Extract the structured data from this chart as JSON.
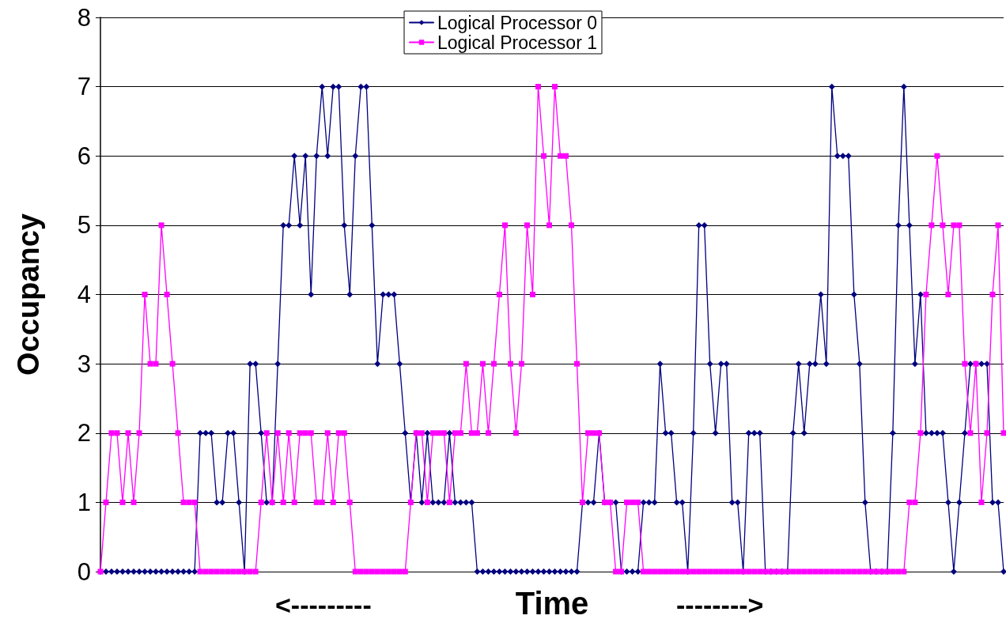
{
  "chart_data": {
    "type": "line",
    "xlabel": "Time",
    "ylabel": "Occupancy",
    "annotations": [
      "<---------",
      "-------->"
    ],
    "categories": [
      null,
      null,
      null,
      null,
      null,
      null,
      null,
      null,
      null,
      null,
      null,
      null,
      null,
      null,
      null,
      null,
      null,
      null,
      null,
      null,
      null,
      null,
      null,
      null,
      null,
      null,
      null,
      null,
      null,
      null,
      null,
      null,
      null,
      null,
      null,
      null,
      null,
      null,
      null,
      null,
      null,
      null,
      null,
      null,
      null,
      null,
      null,
      null,
      null,
      null,
      null,
      null,
      null,
      null,
      null,
      null,
      null,
      null,
      null,
      null,
      null,
      null,
      null,
      null,
      null,
      null,
      null,
      null,
      null,
      null,
      null,
      null,
      null,
      null,
      null,
      null,
      null,
      null,
      null,
      null,
      null,
      null,
      null,
      null,
      null,
      null,
      null,
      null,
      null,
      null,
      null,
      null,
      null,
      null,
      null,
      null,
      null,
      null,
      null,
      null,
      null,
      null,
      null,
      null,
      null,
      null,
      null,
      null,
      null,
      null,
      null,
      null,
      null,
      null,
      null,
      null,
      null,
      null,
      null,
      null,
      null,
      null,
      null,
      null,
      null,
      null,
      null,
      null,
      null,
      null,
      null,
      null,
      null,
      null,
      null,
      null,
      null,
      null,
      null,
      null,
      null,
      null,
      null,
      null,
      null,
      null,
      null,
      null,
      null,
      null,
      null,
      null,
      null,
      null,
      null,
      null,
      null,
      null,
      null,
      null,
      null,
      null,
      null,
      null
    ],
    "series": [
      {
        "name": "Logical Processor 0",
        "color": "#000080",
        "marker": "diamond",
        "values": [
          0,
          0,
          0,
          0,
          0,
          0,
          0,
          0,
          0,
          0,
          0,
          0,
          0,
          0,
          0,
          0,
          0,
          0,
          2,
          2,
          2,
          1,
          1,
          2,
          2,
          1,
          0,
          3,
          3,
          2,
          1,
          1,
          3,
          5,
          5,
          6,
          5,
          6,
          4,
          6,
          7,
          6,
          7,
          7,
          5,
          4,
          6,
          7,
          7,
          5,
          3,
          4,
          4,
          4,
          3,
          2,
          1,
          2,
          1,
          2,
          1,
          1,
          1,
          2,
          1,
          1,
          1,
          1,
          0,
          0,
          0,
          0,
          0,
          0,
          0,
          0,
          0,
          0,
          0,
          0,
          0,
          0,
          0,
          0,
          0,
          0,
          0,
          1,
          1,
          1,
          2,
          1,
          1,
          1,
          0,
          0,
          0,
          0,
          1,
          1,
          1,
          3,
          2,
          2,
          1,
          1,
          0,
          2,
          5,
          5,
          3,
          2,
          3,
          3,
          1,
          1,
          0,
          2,
          2,
          2,
          0,
          0,
          0,
          0,
          0,
          2,
          3,
          2,
          3,
          3,
          4,
          3,
          7,
          6,
          6,
          6,
          4,
          3,
          1,
          0,
          0,
          0,
          0,
          2,
          5,
          7,
          5,
          3,
          4,
          2,
          2,
          2,
          2,
          1,
          0,
          1,
          2,
          3,
          3,
          3,
          3,
          1,
          1,
          0
        ]
      },
      {
        "name": "Logical Processor 1",
        "color": "#ff00ff",
        "marker": "square",
        "values": [
          0,
          1,
          2,
          2,
          1,
          2,
          1,
          2,
          4,
          3,
          3,
          5,
          4,
          3,
          2,
          1,
          1,
          1,
          0,
          0,
          0,
          0,
          0,
          0,
          0,
          0,
          0,
          0,
          0,
          1,
          2,
          1,
          2,
          1,
          2,
          1,
          2,
          2,
          2,
          1,
          1,
          2,
          1,
          2,
          2,
          1,
          0,
          0,
          0,
          0,
          0,
          0,
          0,
          0,
          0,
          0,
          1,
          2,
          2,
          1,
          2,
          2,
          2,
          1,
          2,
          2,
          3,
          2,
          2,
          3,
          2,
          3,
          4,
          5,
          3,
          2,
          3,
          5,
          4,
          7,
          6,
          5,
          7,
          6,
          6,
          5,
          3,
          1,
          2,
          2,
          2,
          1,
          1,
          0,
          0,
          1,
          1,
          1,
          0,
          0,
          0,
          0,
          0,
          0,
          0,
          0,
          0,
          0,
          0,
          0,
          0,
          0,
          0,
          0,
          0,
          0,
          0,
          0,
          0,
          0,
          0,
          0,
          0,
          0,
          0,
          0,
          0,
          0,
          0,
          0,
          0,
          0,
          0,
          0,
          0,
          0,
          0,
          0,
          0,
          0,
          0,
          0,
          0,
          0,
          0,
          0,
          1,
          1,
          2,
          4,
          5,
          6,
          5,
          4,
          5,
          5,
          3,
          2,
          3,
          1,
          2,
          4,
          5,
          2
        ]
      }
    ],
    "ylim": [
      0,
      8
    ],
    "yticks": [
      0,
      1,
      2,
      3,
      4,
      5,
      6,
      7,
      8
    ],
    "grid": "y",
    "legend": "top",
    "line_style": "solid"
  }
}
